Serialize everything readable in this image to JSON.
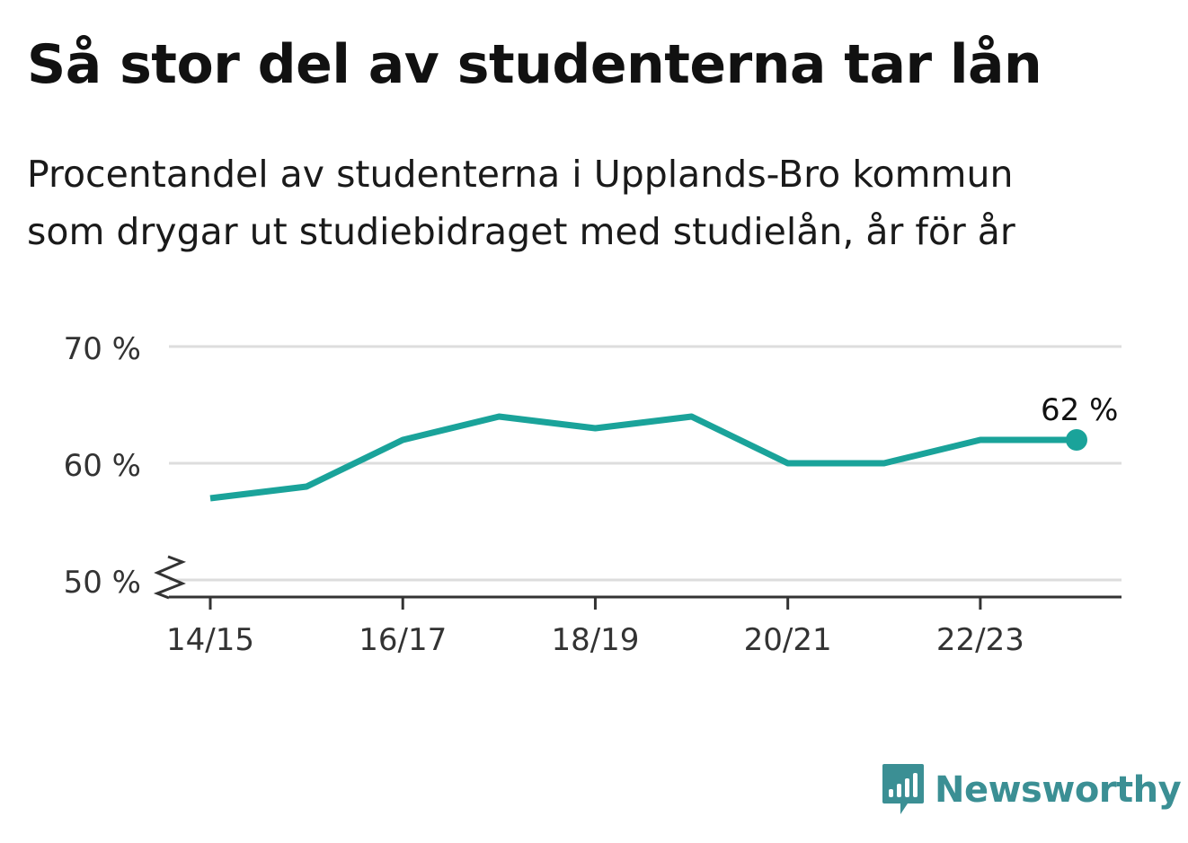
{
  "header": {
    "title": "Så stor del av studenterna tar lån",
    "subtitle_line1": "Procentandel av studenterna i Upplands-Bro kommun",
    "subtitle_line2": "som drygar ut studiebidraget med studielån, år för år"
  },
  "brand": {
    "name": "Newsworthy",
    "color": "#3b8f94"
  },
  "chart_data": {
    "type": "line",
    "title": "Så stor del av studenterna tar lån",
    "subtitle": "Procentandel av studenterna i Upplands-Bro kommun som drygar ut studiebidraget med studielån, år för år",
    "x": [
      "14/15",
      "15/16",
      "16/17",
      "17/18",
      "18/19",
      "19/20",
      "20/21",
      "21/22",
      "22/23",
      "23/24"
    ],
    "x_tick_labels": [
      "14/15",
      "16/17",
      "18/19",
      "20/21",
      "22/23"
    ],
    "series": [
      {
        "values": [
          57,
          58,
          62,
          64,
          63,
          64,
          60,
          60,
          62,
          62
        ],
        "color": "#1aa39a"
      }
    ],
    "ylim": [
      50,
      70
    ],
    "y_ticks": [
      50,
      60,
      70
    ],
    "y_tick_labels": [
      "50 %",
      "60 %",
      "70 %"
    ],
    "y_axis_break": true,
    "grid": true,
    "last_value_label": "62 %",
    "grid_color": "#dddddd",
    "axis_color": "#333333"
  }
}
